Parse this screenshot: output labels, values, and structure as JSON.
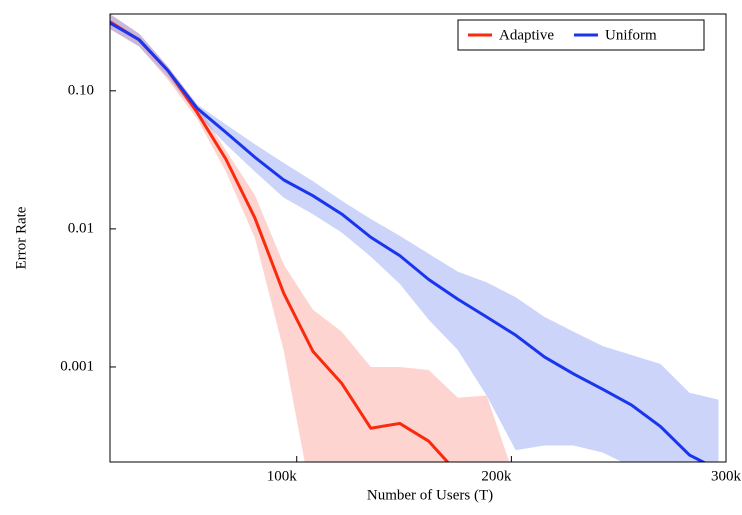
{
  "chart_data": {
    "type": "line",
    "x_label": "Number of Users (T)",
    "y_label": "Error Rate",
    "x": [
      13000,
      26500,
      40000,
      53500,
      67000,
      80500,
      94000,
      107500,
      121000,
      134500,
      148000,
      161500,
      175000,
      188500,
      202000,
      215500,
      229000,
      242500,
      256000,
      269500,
      283000,
      296500
    ],
    "series": [
      {
        "name": "Adaptive",
        "color": "#fa2a0e",
        "band_color": "rgba(250,120,105,0.32)",
        "values": [
          0.316,
          0.234,
          0.14,
          0.07,
          0.032,
          0.012,
          0.0034,
          0.0013,
          0.00076,
          0.00036,
          0.00039,
          0.00029,
          0.00017,
          null,
          null,
          null,
          null,
          null,
          null,
          null,
          null,
          null
        ],
        "upper": [
          0.36,
          0.26,
          0.15,
          0.08,
          0.037,
          0.0176,
          0.0055,
          0.0026,
          0.0018,
          0.001,
          0.001,
          0.00095,
          0.0006,
          0.00062,
          0.00015,
          null,
          null,
          null,
          null,
          null,
          null,
          null
        ],
        "lower": [
          0.28,
          0.21,
          0.12,
          0.063,
          0.026,
          0.0086,
          0.0013,
          0.0001,
          0.0001,
          0.0001,
          0.0001,
          0.0001,
          0.0001,
          0.0001,
          0.0001,
          null,
          null,
          null,
          null,
          null,
          null,
          null
        ]
      },
      {
        "name": "Uniform",
        "color": "#1a35ee",
        "band_color": "rgba(95,120,240,0.32)",
        "values": [
          0.31,
          0.235,
          0.14,
          0.075,
          0.05,
          0.033,
          0.0226,
          0.0174,
          0.0128,
          0.0087,
          0.0064,
          0.0043,
          0.0031,
          0.0023,
          0.0017,
          0.00118,
          0.00089,
          0.00069,
          0.00053,
          0.00037,
          0.00023,
          0.00018
        ],
        "upper": [
          0.36,
          0.26,
          0.15,
          0.08,
          0.057,
          0.041,
          0.03,
          0.0222,
          0.016,
          0.0118,
          0.0089,
          0.0066,
          0.0049,
          0.0041,
          0.0032,
          0.0023,
          0.0018,
          0.00142,
          0.00122,
          0.00105,
          0.00065,
          0.00058
        ],
        "lower": [
          0.28,
          0.21,
          0.125,
          0.068,
          0.041,
          0.026,
          0.0168,
          0.0128,
          0.0094,
          0.0063,
          0.004,
          0.0022,
          0.00133,
          0.00062,
          0.00025,
          0.00027,
          0.00027,
          0.00024,
          0.00019,
          0.00015,
          0.0001,
          0.0001
        ]
      }
    ],
    "xlim": [
      13000,
      300000
    ],
    "xticks": [
      {
        "value": 100000,
        "label": "100k"
      },
      {
        "value": 200000,
        "label": "200k"
      },
      {
        "value": 300000,
        "label": "300k"
      }
    ],
    "ylim": [
      0.000205,
      0.36
    ],
    "yticks": [
      {
        "value": 0.1,
        "label": "0.10"
      },
      0.01,
      0.001
    ],
    "log_y": true,
    "legend": "upper right"
  }
}
